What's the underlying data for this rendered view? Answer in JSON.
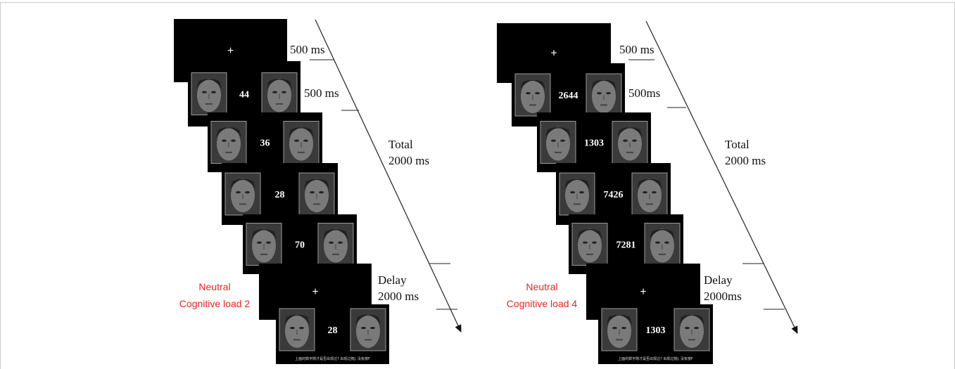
{
  "panels": [
    {
      "screens": [
        {
          "text": "+"
        },
        {
          "text": "44"
        },
        {
          "text": "36"
        },
        {
          "text": "28"
        },
        {
          "text": "70"
        },
        {
          "text": "+"
        },
        {
          "text": "28",
          "prompt": "上面的数字刚才是否出现过? 出现过按J, 没有按F"
        }
      ],
      "timings": {
        "fixation": "500 ms",
        "digits": "500 ms",
        "total": [
          "Total",
          "2000 ms"
        ],
        "delay": [
          "Delay",
          "2000 ms"
        ]
      },
      "condition": [
        "Neutral",
        "Cognitive load 2"
      ]
    },
    {
      "screens": [
        {
          "text": "+"
        },
        {
          "text": "2644"
        },
        {
          "text": "1303"
        },
        {
          "text": "7426"
        },
        {
          "text": "7281"
        },
        {
          "text": "+"
        },
        {
          "text": "1303",
          "prompt": "上面的数字刚才是否出现过? 出现过按J, 没有按F"
        }
      ],
      "timings": {
        "fixation": "500 ms",
        "digits": "500ms",
        "total": [
          "Total",
          "2000 ms"
        ],
        "delay": [
          "Delay",
          "2000ms"
        ]
      },
      "condition": [
        "Neutral",
        "Cognitive load 4"
      ]
    }
  ]
}
